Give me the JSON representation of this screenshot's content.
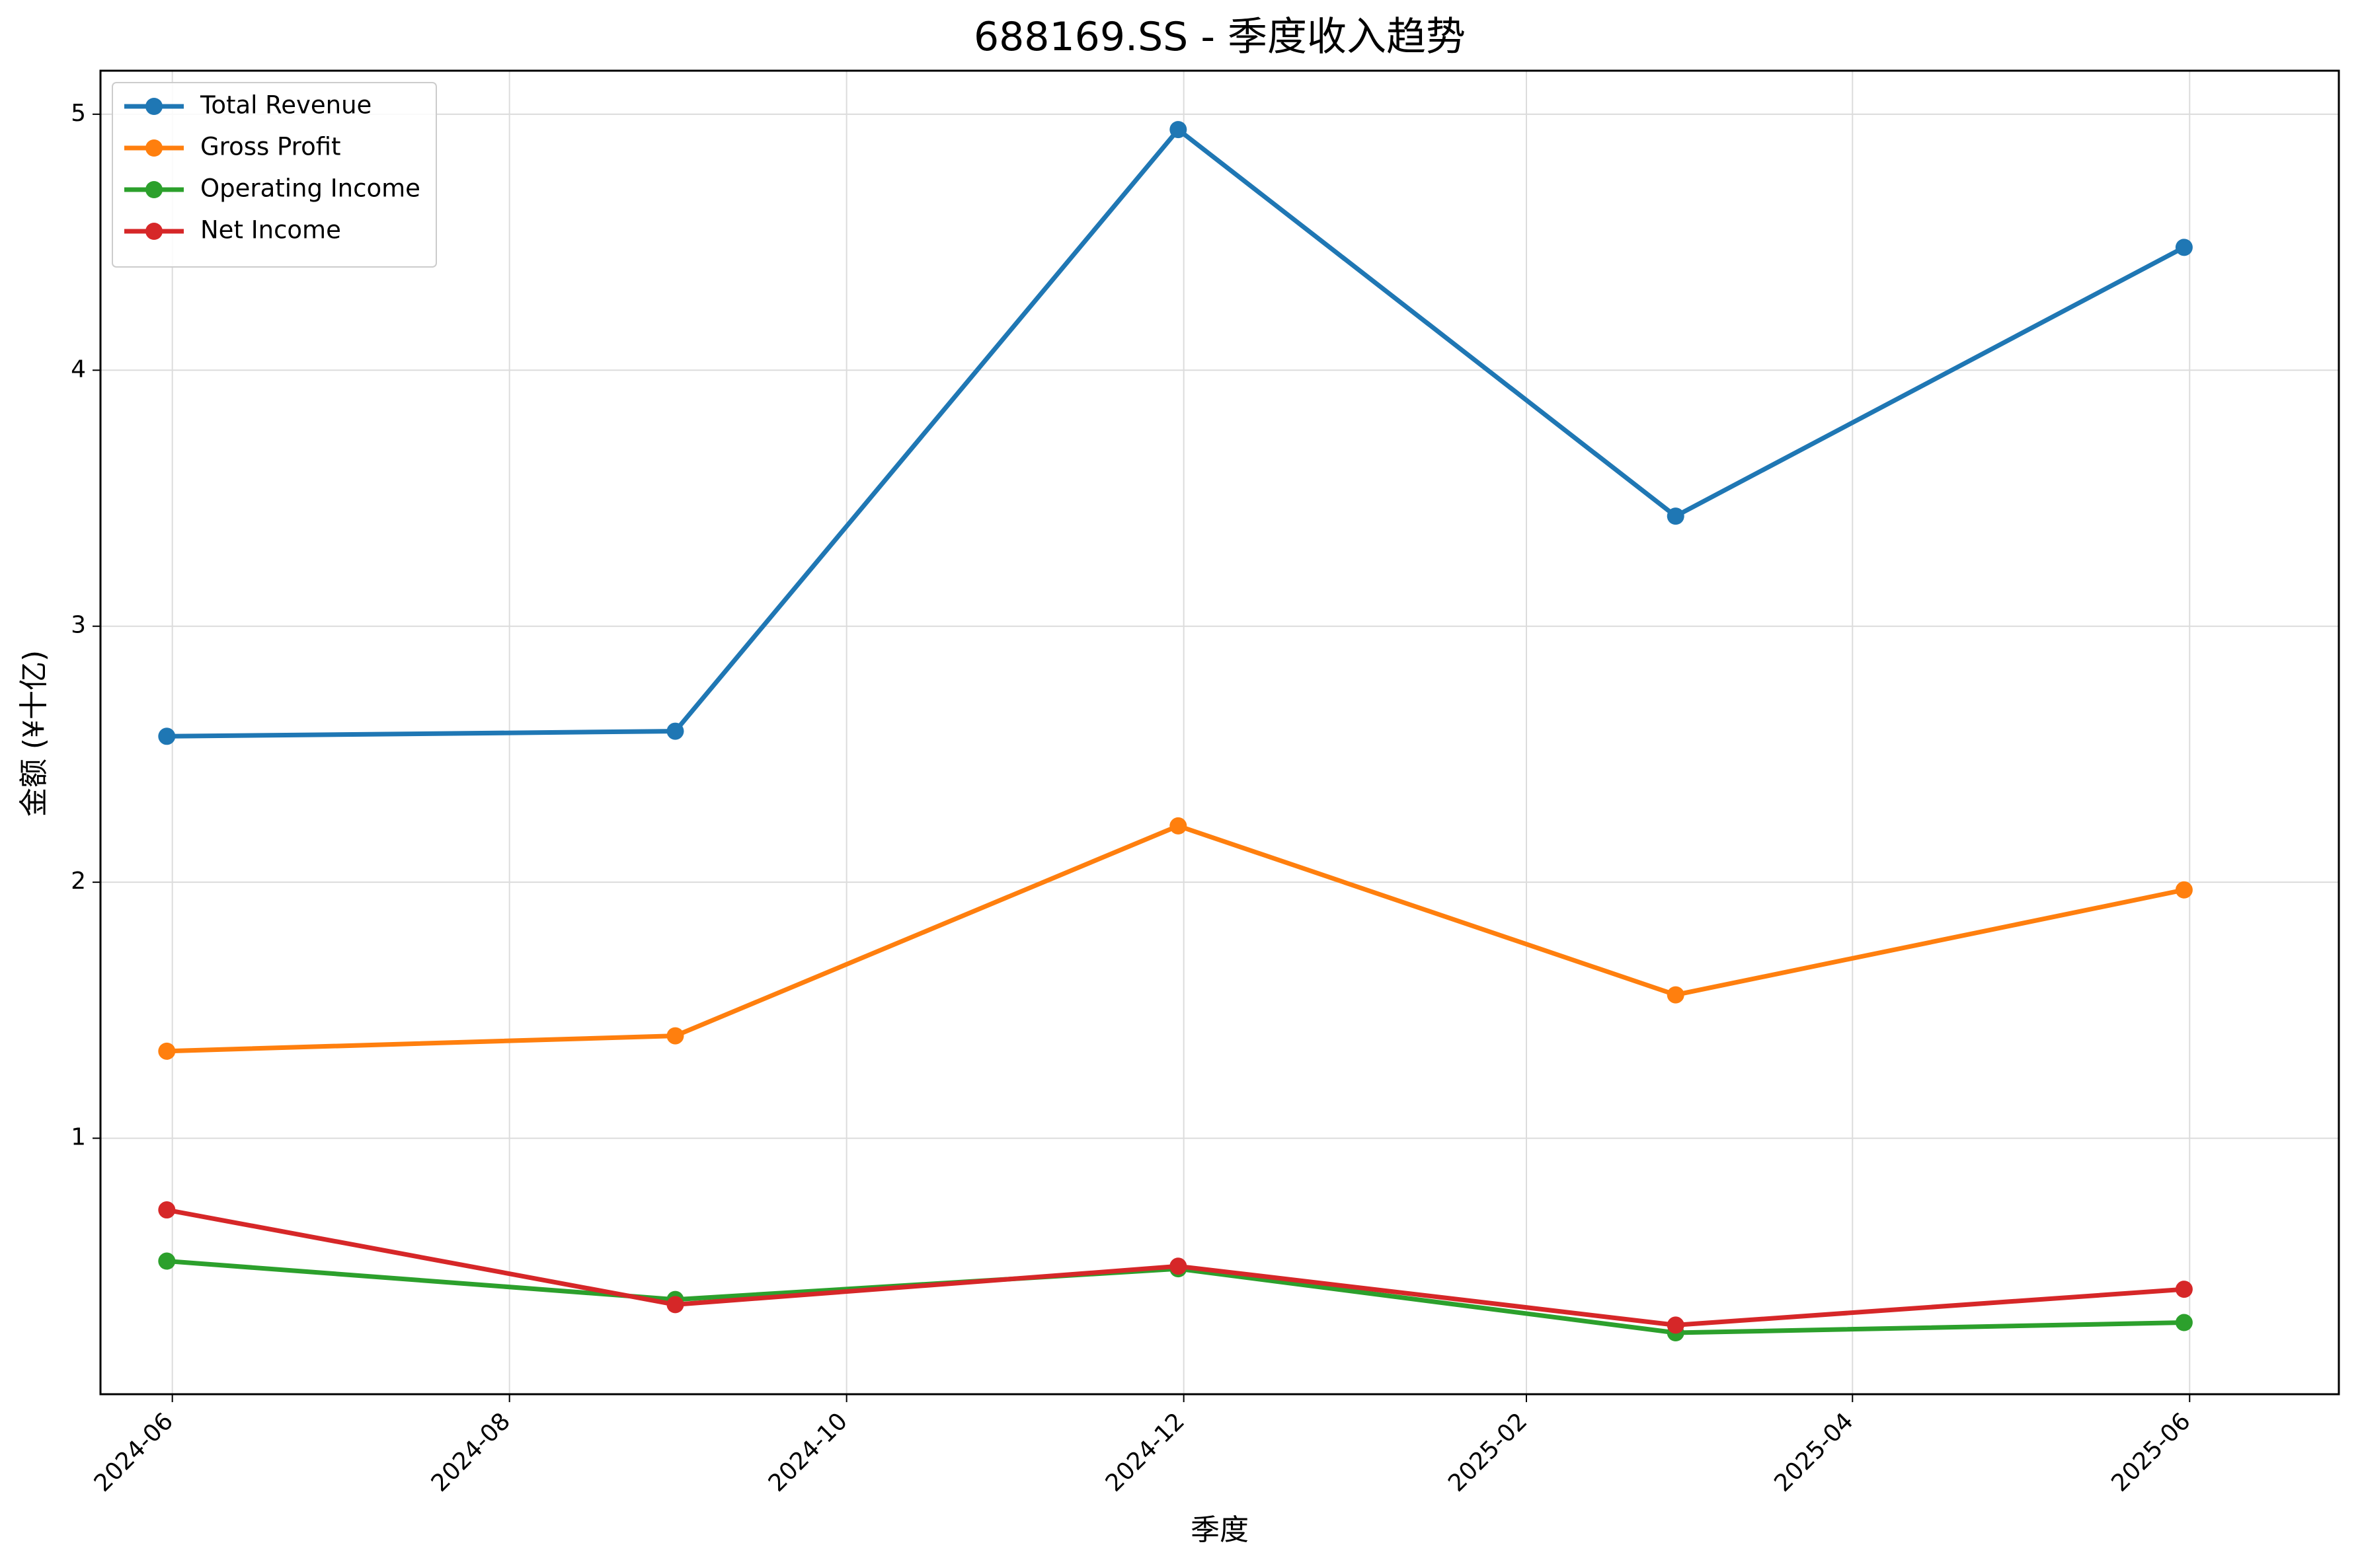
{
  "chart_data": {
    "type": "line",
    "title": "688169.SS - 季度收入趋势",
    "xlabel": "季度",
    "ylabel": "金额 (¥十亿)",
    "x_axis_type": "date",
    "xlim": [
      "2024-05-19",
      "2025-06-28"
    ],
    "ylim": [
      0.0,
      5.17
    ],
    "x_ticks": [
      "2024-06",
      "2024-08",
      "2024-10",
      "2024-12",
      "2025-02",
      "2025-04",
      "2025-06"
    ],
    "x_tick_dates": [
      "2024-06-01",
      "2024-08-01",
      "2024-10-01",
      "2024-12-01",
      "2025-02-01",
      "2025-04-01",
      "2025-06-01"
    ],
    "y_ticks": [
      1,
      2,
      3,
      4,
      5
    ],
    "x": [
      "2024-05-31",
      "2024-08-31",
      "2024-11-30",
      "2025-02-28",
      "2025-05-31"
    ],
    "grid": true,
    "legend_position": "top-left",
    "series": [
      {
        "name": "Total Revenue",
        "color": "#1f77b4",
        "values": [
          2.57,
          2.59,
          4.94,
          3.43,
          4.48
        ]
      },
      {
        "name": "Gross Profit",
        "color": "#ff7f0e",
        "values": [
          1.34,
          1.4,
          2.22,
          1.56,
          1.97
        ]
      },
      {
        "name": "Operating Income",
        "color": "#2ca02c",
        "values": [
          0.52,
          0.37,
          0.49,
          0.24,
          0.28
        ]
      },
      {
        "name": "Net Income",
        "color": "#d62728",
        "values": [
          0.72,
          0.35,
          0.5,
          0.27,
          0.41
        ]
      }
    ]
  }
}
